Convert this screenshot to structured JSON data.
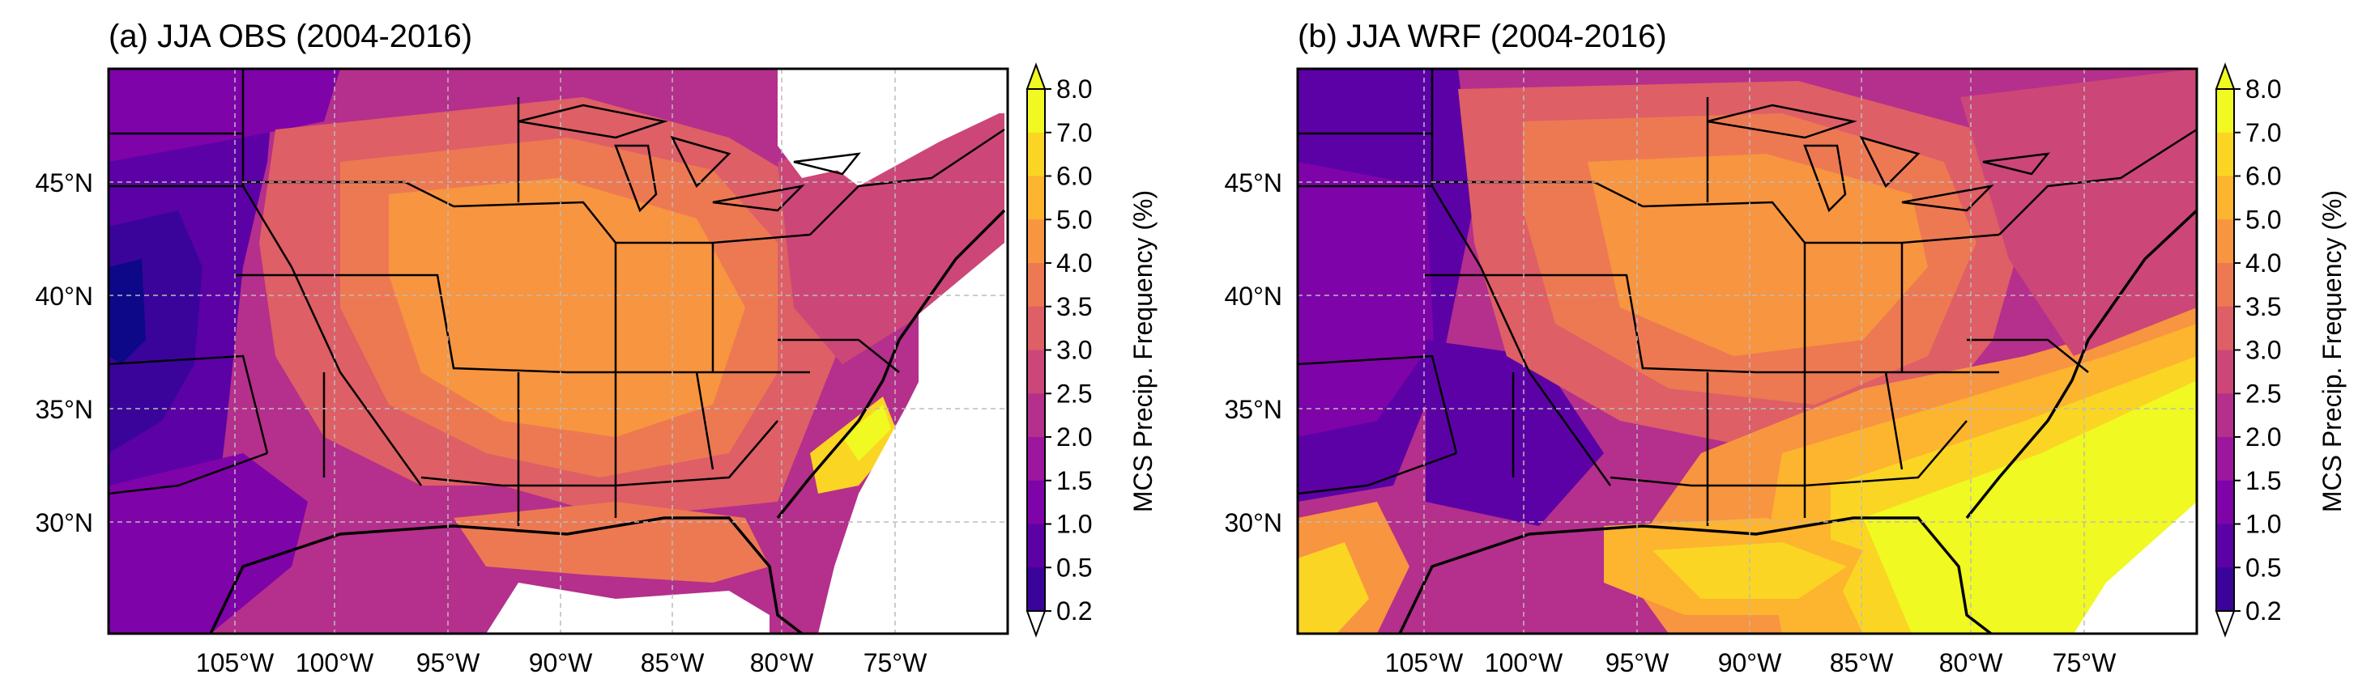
{
  "panels": [
    {
      "title": "(a) JJA OBS (2004-2016)",
      "lat_labels": [
        "45°N",
        "40°N",
        "35°N",
        "30°N"
      ],
      "lon_labels": [
        "105°W",
        "100°W",
        "95°W",
        "90°W",
        "85°W",
        "80°W",
        "75°W"
      ],
      "colorbar_label": "MCS Precip. Frequency (%)",
      "colorbar_ticks": [
        "8.0",
        "7.0",
        "6.0",
        "5.0",
        "4.0",
        "3.5",
        "3.0",
        "2.5",
        "2.0",
        "1.5",
        "1.0",
        "0.5",
        "0.2"
      ]
    },
    {
      "title": "(b) JJA WRF (2004-2016)",
      "lat_labels": [
        "45°N",
        "40°N",
        "35°N",
        "30°N"
      ],
      "lon_labels": [
        "105°W",
        "100°W",
        "95°W",
        "90°W",
        "85°W",
        "80°W",
        "75°W"
      ],
      "colorbar_label": "MCS Precip. Frequency (%)",
      "colorbar_ticks": [
        "8.0",
        "7.0",
        "6.0",
        "5.0",
        "4.0",
        "3.5",
        "3.0",
        "2.5",
        "2.0",
        "1.5",
        "1.0",
        "0.5",
        "0.2"
      ]
    }
  ],
  "palette": {
    "plasma": [
      "#0d0887",
      "#3a049a",
      "#5c01a6",
      "#7e03a8",
      "#9c179e",
      "#b52f8c",
      "#cc4778",
      "#de5f65",
      "#ed7953",
      "#f89540",
      "#fdb42f",
      "#fbd524",
      "#f0f921"
    ],
    "missing": "#ffffff",
    "grid": "#bbbbbb"
  }
}
